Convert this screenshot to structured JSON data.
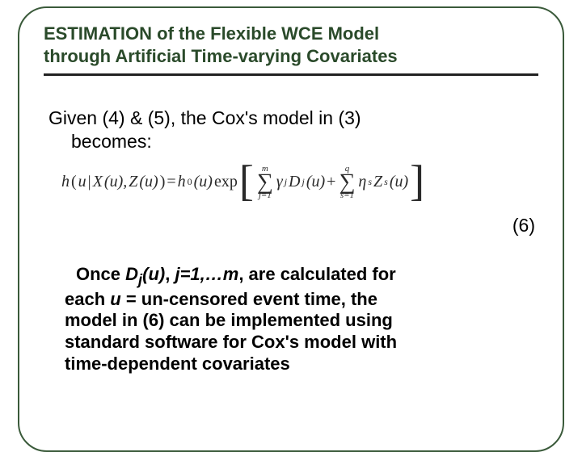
{
  "title": {
    "line1": "ESTIMATION of the Flexible WCE Model",
    "line2": "through Artificial Time-varying Covariates",
    "color": "#2a4a2a",
    "fontsize": 22
  },
  "rule": {
    "color": "#222222",
    "thickness": 3
  },
  "intro": {
    "line1": "Given (4) & (5), the Cox's model in (3)",
    "line2": "becomes:",
    "fontsize": 23
  },
  "formula": {
    "lhs_h": "h",
    "lhs_open": "(",
    "lhs_u": "u",
    "lhs_bar": " | ",
    "lhs_X": "X",
    "lhs_Xarg": "(u),",
    "lhs_Z": "Z",
    "lhs_Zarg": "(u)",
    "lhs_close": ")",
    "eq": " = ",
    "h0": "h",
    "h0_sub": "0",
    "h0_arg": "(u)",
    "exp": "exp",
    "sum1_top": "m",
    "sum1_bot": "j=1",
    "gamma": "γ",
    "gamma_sub": "j",
    "D": "D",
    "D_sub": "j",
    "D_arg": "(u)",
    "plus": " + ",
    "sum2_top": "q",
    "sum2_bot": "s=1",
    "eta": "η",
    "eta_sub": "s",
    "Zs": "Z",
    "Zs_sub": "s",
    "Zs_arg": "(u)",
    "fontsize": 20,
    "font": "Times New Roman"
  },
  "eqnum": "(6)",
  "para2": {
    "t1": "Once ",
    "Dj": "D",
    "Dj_sub": "j",
    "Dj_arg": "(u)",
    "t2": ", ",
    "jrange": "j=1,…m",
    "t3": ", are calculated for",
    "t4": "each ",
    "u": "u",
    "t5": " = un-censored event time, the",
    "t6": "model in (6) can be implemented using",
    "t7": "standard software for Cox's model with",
    "t8": "time-dependent covariates",
    "fontsize": 22
  },
  "frame": {
    "border_color": "#3a5a3a",
    "radius": 36
  }
}
